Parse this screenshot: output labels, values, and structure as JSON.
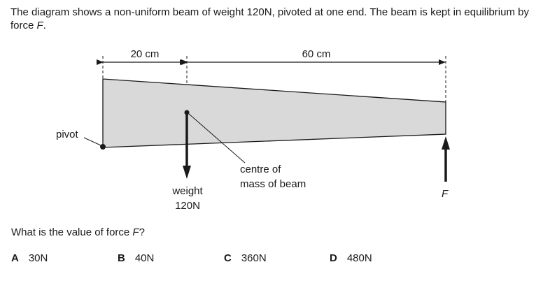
{
  "question": {
    "intro_main": "The diagram shows a non-uniform beam of weight 120N, pivoted at one end. The beam is kept in equilibrium by force ",
    "intro_force": "F",
    "intro_end": ".",
    "prompt_main": "What is the value of force ",
    "prompt_force": "F",
    "prompt_end": "?"
  },
  "diagram": {
    "dim_left": "20 cm",
    "dim_right": "60 cm",
    "pivot_label": "pivot",
    "com_label_line1": "centre of",
    "com_label_line2": "mass of beam",
    "weight_label_line1": "weight",
    "weight_label_line2": "120N",
    "force_label": "F",
    "beam_fill": "#d9d9d9"
  },
  "options": [
    {
      "letter": "A",
      "value": "30N"
    },
    {
      "letter": "B",
      "value": "40N"
    },
    {
      "letter": "C",
      "value": "360N"
    },
    {
      "letter": "D",
      "value": "480N"
    }
  ]
}
